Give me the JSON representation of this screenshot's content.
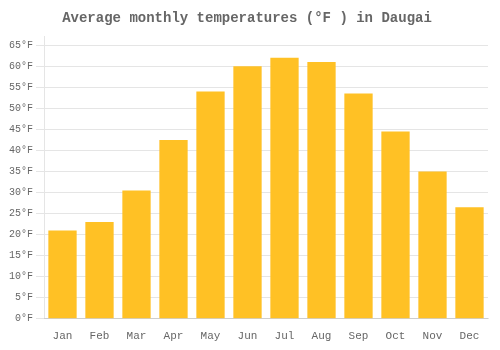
{
  "chart_data": {
    "type": "bar",
    "title": "Average monthly temperatures (°F ) in Daugai",
    "categories": [
      "Jan",
      "Feb",
      "Mar",
      "Apr",
      "May",
      "Jun",
      "Jul",
      "Aug",
      "Sep",
      "Oct",
      "Nov",
      "Dec"
    ],
    "values": [
      21,
      23,
      30.5,
      42.5,
      54,
      60,
      62,
      61,
      53.5,
      44.5,
      35,
      26.5
    ],
    "color": "#FFC125",
    "ylim": [
      0,
      67
    ],
    "yticks": [
      {
        "value": 0,
        "label": "0°F"
      },
      {
        "value": 5,
        "label": "5°F"
      },
      {
        "value": 10,
        "label": "10°F"
      },
      {
        "value": 15,
        "label": "15°F"
      },
      {
        "value": 20,
        "label": "20°F"
      },
      {
        "value": 25,
        "label": "25°F"
      },
      {
        "value": 30,
        "label": "30°F"
      },
      {
        "value": 35,
        "label": "35°F"
      },
      {
        "value": 40,
        "label": "40°F"
      },
      {
        "value": 45,
        "label": "45°F"
      },
      {
        "value": 50,
        "label": "50°F"
      },
      {
        "value": 55,
        "label": "55°F"
      },
      {
        "value": 60,
        "label": "60°F"
      },
      {
        "value": 65,
        "label": "65°F"
      }
    ],
    "grid": true
  }
}
